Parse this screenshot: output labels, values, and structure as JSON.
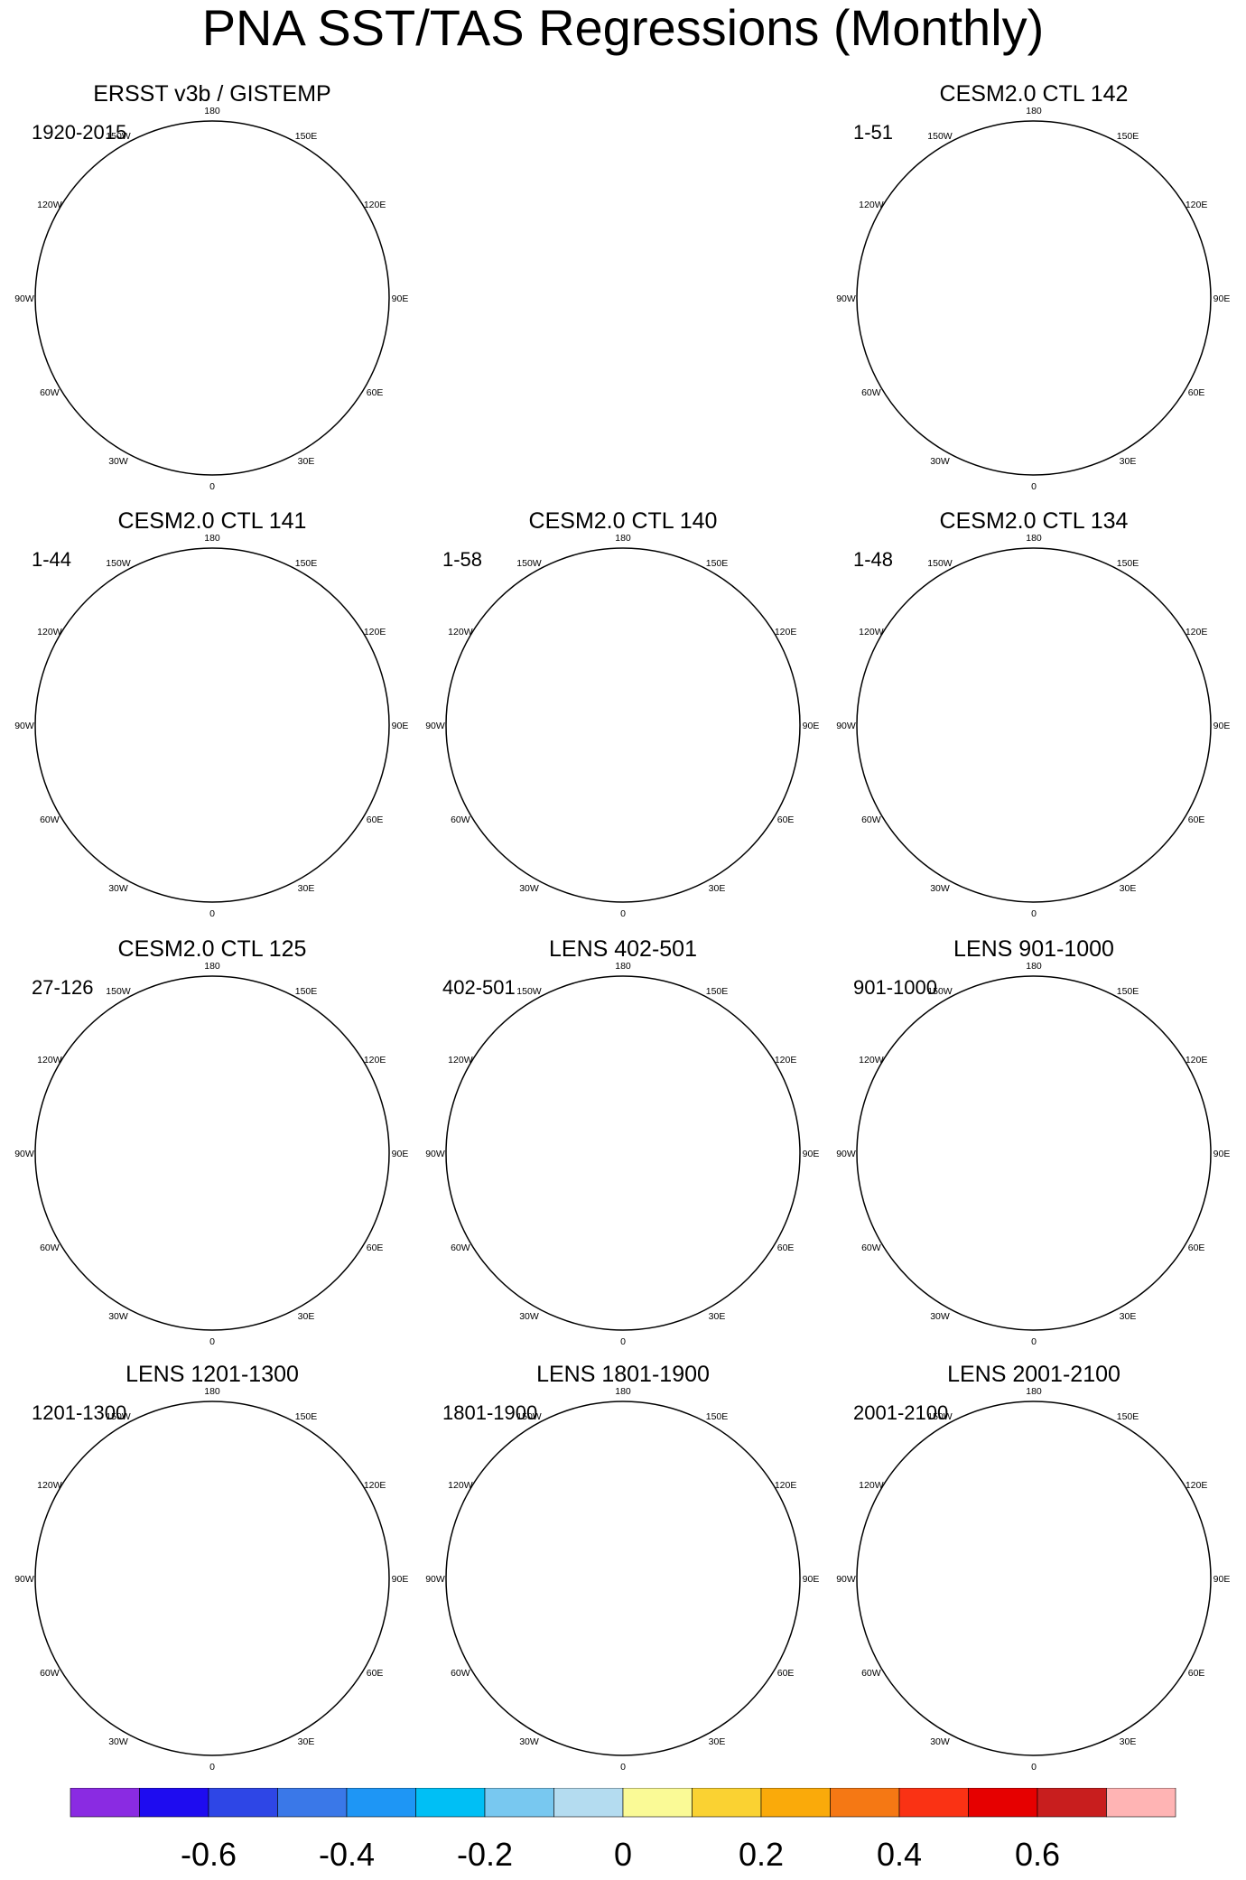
{
  "figure": {
    "title": "PNA SST/TAS Regressions (Monthly)"
  },
  "chart_data": {
    "type": "polar-map-panels",
    "projection": "north polar stereographic",
    "longitude_labels": [
      "180",
      "150E",
      "120E",
      "90E",
      "60E",
      "30E",
      "0",
      "30W",
      "60W",
      "90W",
      "120W",
      "150W"
    ],
    "panels": [
      {
        "title": "ERSST v3b / GISTEMP",
        "years": "1920-2015"
      },
      {
        "title": "CESM2.0 CTL 142",
        "years": "1-51"
      },
      {
        "title": "CESM2.0 CTL 141",
        "years": "1-44"
      },
      {
        "title": "CESM2.0 CTL 140",
        "years": "1-58"
      },
      {
        "title": "CESM2.0 CTL 134",
        "years": "1-48"
      },
      {
        "title": "CESM2.0 CTL 125",
        "years": "27-126"
      },
      {
        "title": "LENS 402-501",
        "years": "402-501"
      },
      {
        "title": "LENS 901-1000",
        "years": "901-1000"
      },
      {
        "title": "LENS 1201-1300",
        "years": "1201-1300"
      },
      {
        "title": "LENS 1801-1900",
        "years": "1801-1900"
      },
      {
        "title": "LENS 2001-2100",
        "years": "2001-2100"
      }
    ],
    "colorbar": {
      "levels": [
        -0.7,
        -0.6,
        -0.5,
        -0.4,
        -0.3,
        -0.2,
        -0.1,
        0,
        0.1,
        0.2,
        0.3,
        0.4,
        0.5,
        0.6,
        0.7
      ],
      "colors": [
        "#8a2be2",
        "#1e0cf0",
        "#2e46e6",
        "#3a78e8",
        "#1e96f5",
        "#00bff5",
        "#78c8f0",
        "#b4dcf0",
        "#fafa96",
        "#fad232",
        "#faaa0a",
        "#f57814",
        "#fa3214",
        "#e60000",
        "#c81e1e",
        "#ffb4b4"
      ],
      "tick_labels": [
        "-0.6",
        "-0.4",
        "-0.2",
        "0",
        "0.2",
        "0.4",
        "0.6"
      ],
      "tick_values": [
        -0.6,
        -0.4,
        -0.2,
        0,
        0.2,
        0.4,
        0.6
      ]
    }
  }
}
